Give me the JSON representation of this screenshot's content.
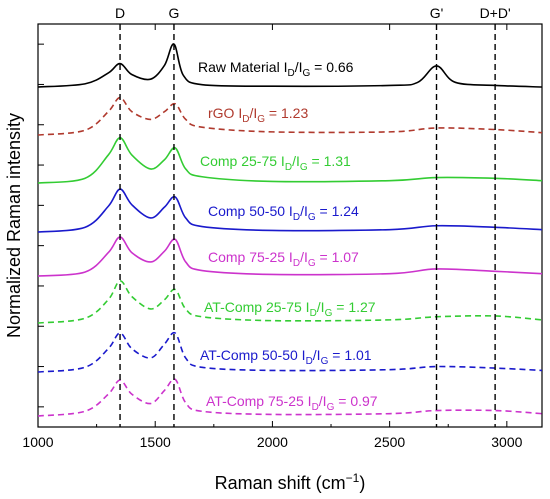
{
  "chart_data": {
    "type": "line",
    "xlabel": "Raman shift (cm",
    "xlabel_sup": "−1",
    "xlabel_end": ")",
    "ylabel": "Normalized Raman intensity",
    "xlim": [
      1000,
      3150
    ],
    "x_ticks": [
      1000,
      1500,
      2000,
      2500,
      3000
    ],
    "y_ticks_count": 10,
    "grid": false,
    "peak_markers": [
      {
        "label": "D",
        "x": 1350
      },
      {
        "label": "G",
        "x": 1580
      },
      {
        "label": "G'",
        "x": 2700
      },
      {
        "label": "D+D'",
        "x": 2950
      }
    ],
    "series": [
      {
        "name": "Raw Material",
        "ratio": "0.66",
        "color": "#000000",
        "dash": false,
        "baseline": 0.0,
        "points": [
          [
            1000,
            0.0
          ],
          [
            1200,
            0.04
          ],
          [
            1300,
            0.18
          ],
          [
            1350,
            0.3
          ],
          [
            1400,
            0.16
          ],
          [
            1480,
            0.1
          ],
          [
            1540,
            0.28
          ],
          [
            1580,
            0.55
          ],
          [
            1620,
            0.15
          ],
          [
            1700,
            0.03
          ],
          [
            2000,
            0.01
          ],
          [
            2500,
            0.02
          ],
          [
            2620,
            0.06
          ],
          [
            2700,
            0.27
          ],
          [
            2780,
            0.06
          ],
          [
            2950,
            0.02
          ],
          [
            3150,
            0.0
          ]
        ]
      },
      {
        "name": "rGO",
        "ratio": "1.23",
        "color": "#b03a2e",
        "dash": true,
        "baseline": 0.0,
        "points": [
          [
            1000,
            0.0
          ],
          [
            1200,
            0.06
          ],
          [
            1300,
            0.3
          ],
          [
            1350,
            0.48
          ],
          [
            1400,
            0.3
          ],
          [
            1480,
            0.2
          ],
          [
            1540,
            0.3
          ],
          [
            1585,
            0.4
          ],
          [
            1630,
            0.2
          ],
          [
            1700,
            0.1
          ],
          [
            2000,
            0.04
          ],
          [
            2500,
            0.04
          ],
          [
            2700,
            0.09
          ],
          [
            2950,
            0.07
          ],
          [
            3150,
            0.03
          ]
        ]
      },
      {
        "name": "Comp 25-75",
        "ratio": "1.31",
        "color": "#33cc33",
        "dash": false,
        "baseline": 0.0,
        "points": [
          [
            1000,
            0.0
          ],
          [
            1200,
            0.06
          ],
          [
            1300,
            0.36
          ],
          [
            1350,
            0.58
          ],
          [
            1400,
            0.36
          ],
          [
            1480,
            0.18
          ],
          [
            1540,
            0.3
          ],
          [
            1585,
            0.45
          ],
          [
            1630,
            0.18
          ],
          [
            1700,
            0.08
          ],
          [
            2000,
            0.02
          ],
          [
            2500,
            0.03
          ],
          [
            2700,
            0.07
          ],
          [
            2950,
            0.06
          ],
          [
            3150,
            0.03
          ]
        ]
      },
      {
        "name": "Comp 50-50",
        "ratio": "1.24",
        "color": "#1a1acc",
        "dash": false,
        "baseline": 0.0,
        "points": [
          [
            1000,
            0.0
          ],
          [
            1200,
            0.06
          ],
          [
            1300,
            0.33
          ],
          [
            1350,
            0.55
          ],
          [
            1400,
            0.35
          ],
          [
            1480,
            0.18
          ],
          [
            1540,
            0.32
          ],
          [
            1585,
            0.45
          ],
          [
            1630,
            0.18
          ],
          [
            1700,
            0.07
          ],
          [
            2000,
            0.02
          ],
          [
            2500,
            0.03
          ],
          [
            2700,
            0.08
          ],
          [
            2950,
            0.06
          ],
          [
            3150,
            0.03
          ]
        ]
      },
      {
        "name": "Comp 75-25",
        "ratio": "1.07",
        "color": "#cc33cc",
        "dash": false,
        "baseline": 0.0,
        "points": [
          [
            1000,
            0.0
          ],
          [
            1200,
            0.05
          ],
          [
            1300,
            0.3
          ],
          [
            1350,
            0.5
          ],
          [
            1400,
            0.3
          ],
          [
            1480,
            0.18
          ],
          [
            1540,
            0.32
          ],
          [
            1585,
            0.47
          ],
          [
            1630,
            0.18
          ],
          [
            1700,
            0.07
          ],
          [
            2000,
            0.02
          ],
          [
            2500,
            0.03
          ],
          [
            2700,
            0.09
          ],
          [
            2950,
            0.06
          ],
          [
            3150,
            0.03
          ]
        ]
      },
      {
        "name": "AT-Comp 25-75",
        "ratio": "1.27",
        "color": "#33cc33",
        "dash": true,
        "baseline": 0.0,
        "points": [
          [
            1000,
            0.0
          ],
          [
            1200,
            0.06
          ],
          [
            1300,
            0.3
          ],
          [
            1350,
            0.54
          ],
          [
            1400,
            0.34
          ],
          [
            1480,
            0.18
          ],
          [
            1540,
            0.3
          ],
          [
            1585,
            0.43
          ],
          [
            1630,
            0.18
          ],
          [
            1700,
            0.08
          ],
          [
            2000,
            0.03
          ],
          [
            2500,
            0.04
          ],
          [
            2700,
            0.08
          ],
          [
            2950,
            0.09
          ],
          [
            3150,
            0.04
          ]
        ]
      },
      {
        "name": "AT-Comp 50-50",
        "ratio": "1.01",
        "color": "#1a1acc",
        "dash": true,
        "baseline": 0.0,
        "points": [
          [
            1000,
            0.0
          ],
          [
            1200,
            0.06
          ],
          [
            1300,
            0.3
          ],
          [
            1350,
            0.5
          ],
          [
            1400,
            0.3
          ],
          [
            1480,
            0.18
          ],
          [
            1540,
            0.36
          ],
          [
            1585,
            0.5
          ],
          [
            1630,
            0.18
          ],
          [
            1700,
            0.06
          ],
          [
            2000,
            0.02
          ],
          [
            2500,
            0.03
          ],
          [
            2700,
            0.07
          ],
          [
            2950,
            0.05
          ],
          [
            3150,
            0.02
          ]
        ]
      },
      {
        "name": "AT-Comp 75-25",
        "ratio": "0.97",
        "color": "#cc33cc",
        "dash": true,
        "baseline": 0.0,
        "points": [
          [
            1000,
            0.0
          ],
          [
            1200,
            0.06
          ],
          [
            1300,
            0.28
          ],
          [
            1350,
            0.46
          ],
          [
            1400,
            0.28
          ],
          [
            1480,
            0.16
          ],
          [
            1540,
            0.33
          ],
          [
            1585,
            0.47
          ],
          [
            1630,
            0.17
          ],
          [
            1700,
            0.06
          ],
          [
            2000,
            0.02
          ],
          [
            2500,
            0.03
          ],
          [
            2700,
            0.07
          ],
          [
            2950,
            0.07
          ],
          [
            3150,
            0.03
          ]
        ]
      }
    ]
  }
}
